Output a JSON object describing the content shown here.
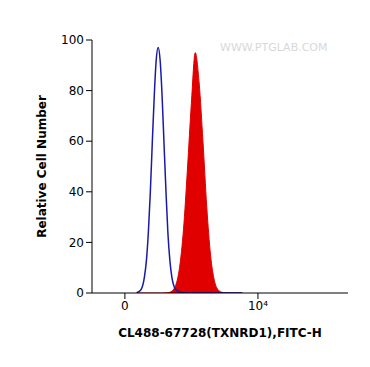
{
  "chart_data": {
    "type": "histogram",
    "xlabel": "CL488-67728(TXNRD1),FITC-H",
    "ylabel": "Relative Cell Number",
    "annotation": "WWW.PTGLAB.COM",
    "x": [
      203,
      275,
      348,
      387,
      425,
      466,
      506,
      550,
      593,
      640,
      686,
      735,
      785,
      838,
      890,
      948,
      1007,
      1068,
      1131,
      1198,
      1267,
      1418,
      1585,
      1766,
      1962,
      2177,
      2410,
      2665,
      2943,
      3248,
      3580,
      3945,
      4345,
      4782,
      5260,
      5785,
      6690
    ],
    "series": [
      {
        "type": "area",
        "color": "#e00000",
        "values": [
          0,
          0,
          0,
          0,
          0,
          0,
          0,
          0,
          0,
          0,
          0,
          0,
          0,
          0.1,
          0.1,
          0.3,
          0.7,
          1.5,
          3,
          5.7,
          10,
          25,
          49,
          75,
          95,
          83,
          60,
          34,
          15,
          5,
          1.3,
          0.3,
          0.1,
          0,
          0,
          0,
          0
        ]
      },
      {
        "type": "line",
        "color": "#1a1aa8",
        "values": [
          0.1,
          1.1,
          6.4,
          13,
          24,
          40,
          59,
          78,
          92,
          97,
          92,
          78,
          59,
          40,
          24,
          13,
          6.4,
          3,
          1.5,
          0.8,
          0.4,
          0.1,
          0,
          0,
          0,
          0,
          0,
          0,
          0,
          0,
          0,
          0,
          0,
          0,
          0,
          0,
          0
        ]
      }
    ],
    "xlim": [
      -630,
      100000
    ],
    "xticks": [
      0,
      {
        "value": 10000,
        "label": "10⁴"
      }
    ],
    "ylim": [
      0,
      100
    ],
    "yticks": [
      0,
      20,
      40,
      60,
      80,
      100
    ],
    "grid": false
  }
}
